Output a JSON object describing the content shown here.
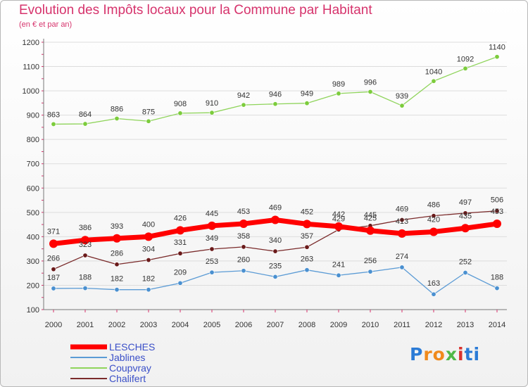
{
  "header": {
    "title": "Evolution des Impôts locaux pour la Commune par Habitant",
    "subtitle": "(en € et par an)"
  },
  "logo": {
    "letters": [
      "P",
      "r",
      "o",
      "x",
      "i",
      "t",
      "i"
    ],
    "colors": [
      "#2b7bd6",
      "#f08a1c",
      "#f08a1c",
      "#4fb848",
      "#d9322e",
      "#2b7bd6",
      "#2b7bd6"
    ]
  },
  "chart_data": {
    "type": "line",
    "title": "Evolution des Impôts locaux pour la Commune par Habitant",
    "subtitle": "(en € et par an)",
    "x": [
      "2000",
      "2001",
      "2002",
      "2003",
      "2004",
      "2005",
      "2006",
      "2007",
      "2008",
      "2009",
      "2010",
      "2011",
      "2012",
      "2013",
      "2014"
    ],
    "yticks": [
      "100",
      "200",
      "300",
      "400",
      "500",
      "600",
      "700",
      "800",
      "900",
      "1000",
      "1100",
      "1200"
    ],
    "ylim": [
      100,
      1200
    ],
    "grid": "horizontal",
    "legend_position": "bottom-left",
    "series": [
      {
        "name": "LESCHES",
        "color": "#ff0000",
        "values": [
          371,
          386,
          393,
          400,
          426,
          445,
          453,
          469,
          452,
          442,
          425,
          413,
          420,
          435,
          453
        ]
      },
      {
        "name": "Jablines",
        "color": "#5b9bd5",
        "values": [
          187,
          188,
          182,
          182,
          209,
          253,
          260,
          235,
          263,
          241,
          256,
          274,
          163,
          252,
          188
        ]
      },
      {
        "name": "Coupvray",
        "color": "#8fd45b",
        "values": [
          863,
          864,
          886,
          875,
          908,
          910,
          942,
          946,
          949,
          989,
          996,
          939,
          1040,
          1092,
          1140
        ]
      },
      {
        "name": "Chalifert",
        "color": "#7a2a2a",
        "values": [
          266,
          323,
          286,
          304,
          331,
          349,
          358,
          340,
          357,
          429,
          445,
          469,
          486,
          497,
          506
        ]
      }
    ]
  }
}
